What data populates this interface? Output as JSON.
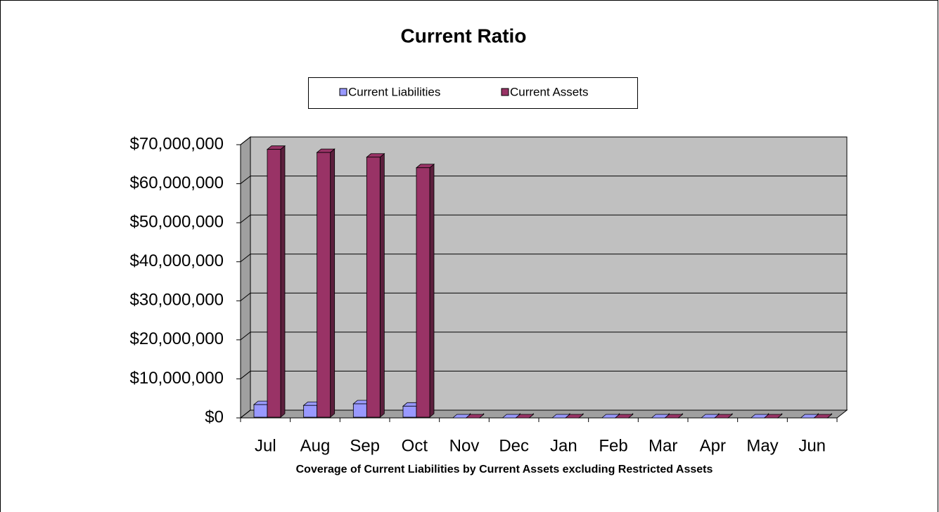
{
  "chart_data": {
    "type": "bar3d",
    "title": "Current Ratio",
    "xlabel": "Coverage of Current Liabilities by Current Assets excluding Restricted Assets",
    "categories": [
      "Jul",
      "Aug",
      "Sep",
      "Oct",
      "Nov",
      "Dec",
      "Jan",
      "Feb",
      "Mar",
      "Apr",
      "May",
      "Jun"
    ],
    "series": [
      {
        "name": "Current Liabilities",
        "color": "#9999ff",
        "values": [
          3400000,
          3200000,
          3600000,
          3000000,
          0,
          0,
          0,
          0,
          0,
          0,
          0,
          0
        ]
      },
      {
        "name": "Current Assets",
        "color": "#993366",
        "values": [
          68800000,
          68000000,
          66800000,
          64100000,
          0,
          0,
          0,
          0,
          0,
          0,
          0,
          0
        ]
      }
    ],
    "ylim": [
      0,
      70000000
    ],
    "yticks": [
      {
        "value": 0,
        "label": "$0"
      },
      {
        "value": 10000000,
        "label": "$10,000,000"
      },
      {
        "value": 20000000,
        "label": "$20,000,000"
      },
      {
        "value": 30000000,
        "label": "$30,000,000"
      },
      {
        "value": 40000000,
        "label": "$40,000,000"
      },
      {
        "value": 50000000,
        "label": "$50,000,000"
      },
      {
        "value": 60000000,
        "label": "$60,000,000"
      },
      {
        "value": 70000000,
        "label": "$70,000,000"
      }
    ],
    "grid": true,
    "legend": "top"
  }
}
